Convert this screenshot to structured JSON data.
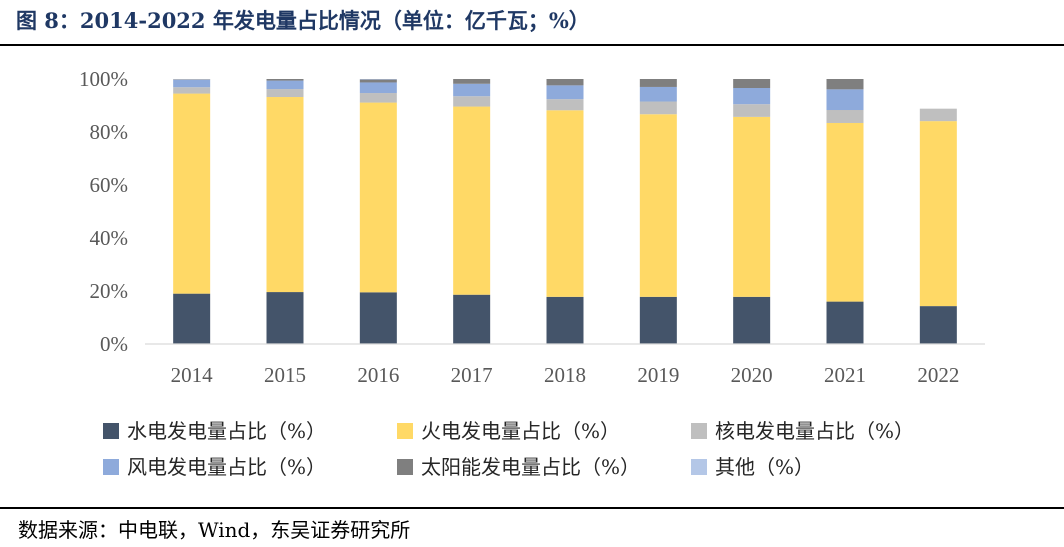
{
  "title": "图 8：2014-2022 年发电量占比情况（单位：亿千瓦；%）",
  "source": "数据来源：中电联，Wind，东吴证券研究所",
  "chart_data": {
    "type": "bar",
    "stacked": true,
    "title": "图 8：2014-2022 年发电量占比情况（单位：亿千瓦；%）",
    "xlabel": "",
    "ylabel": "",
    "ylim": [
      0,
      100
    ],
    "y_ticks": [
      "0%",
      "20%",
      "40%",
      "60%",
      "80%",
      "100%"
    ],
    "grid": false,
    "legend_position": "bottom",
    "categories": [
      "2014",
      "2015",
      "2016",
      "2017",
      "2018",
      "2019",
      "2020",
      "2021",
      "2022"
    ],
    "series": [
      {
        "name": "水电发电量占比（%）",
        "color": "#44546a",
        "values": [
          19.0,
          19.6,
          19.5,
          18.6,
          17.8,
          17.8,
          17.8,
          16.0,
          14.3
        ]
      },
      {
        "name": "火电发电量占比（%）",
        "color": "#ffd966",
        "values": [
          75.5,
          73.6,
          71.6,
          71.0,
          70.4,
          68.9,
          67.9,
          67.4,
          69.8
        ]
      },
      {
        "name": "核电发电量占比（%）",
        "color": "#bfbfbf",
        "values": [
          2.4,
          3.0,
          3.6,
          3.9,
          4.2,
          4.8,
          4.8,
          4.9,
          4.7
        ]
      },
      {
        "name": "风电发电量占比（%）",
        "color": "#8eaadb",
        "values": [
          2.8,
          3.2,
          4.0,
          4.7,
          5.2,
          5.5,
          6.1,
          7.8,
          0
        ]
      },
      {
        "name": "太阳能发电量占比（%）",
        "color": "#7f7f7f",
        "values": [
          0.2,
          0.6,
          1.1,
          1.8,
          2.4,
          3.0,
          3.4,
          3.9,
          0
        ]
      },
      {
        "name": "其他（%）",
        "color": "#b4c7e7",
        "values": [
          0.1,
          0.0,
          0.2,
          0.0,
          0.0,
          0.0,
          0.0,
          0.0,
          0
        ]
      }
    ]
  }
}
